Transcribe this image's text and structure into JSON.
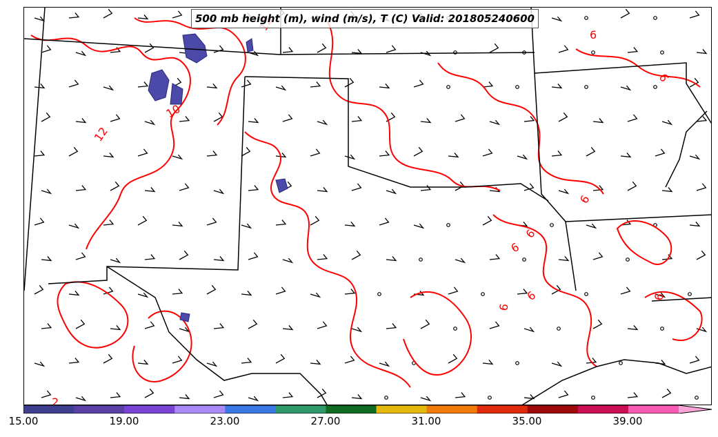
{
  "title": "500 mb height (m), wind (m/s), T (C) Valid: 201805240600",
  "contour_labels": [
    "12",
    "10",
    "12",
    "6",
    "6",
    "6",
    "6",
    "6",
    "6",
    "6",
    "6",
    "2"
  ],
  "colorbar": {
    "ticks": [
      "15.00",
      "19.00",
      "23.00",
      "27.00",
      "31.00",
      "35.00",
      "39.00"
    ],
    "colors": [
      "#3e3f8e",
      "#5a3fa6",
      "#7a45d6",
      "#a889f5",
      "#3a78e6",
      "#2e9a6a",
      "#0f6b22",
      "#e4b80c",
      "#f07a0a",
      "#e02a0c",
      "#9e0a0a",
      "#cc0e55",
      "#f85ab4",
      "#f9a3d6"
    ]
  },
  "colors": {
    "contour": "#ff0000",
    "state_lines": "#000000",
    "fill": "#4b4aa8"
  }
}
